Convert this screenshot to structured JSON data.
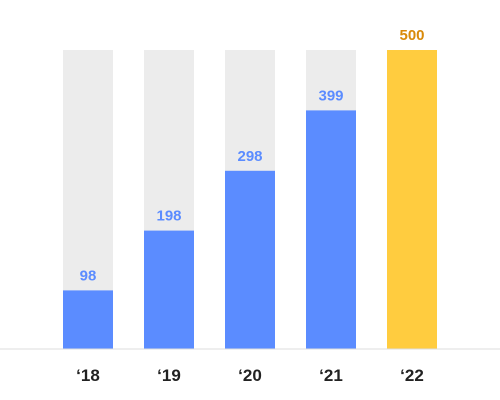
{
  "chart_data": {
    "type": "bar",
    "categories": [
      "‘18",
      "‘19",
      "‘20",
      "‘21",
      "‘22"
    ],
    "values": [
      98,
      198,
      298,
      399,
      500
    ],
    "data_labels": [
      "98",
      "198",
      "298",
      "399",
      "500"
    ],
    "ylim": [
      0,
      500
    ],
    "grid": false,
    "legend": "none",
    "title": "",
    "xlabel": "",
    "ylabel": ""
  },
  "colors": {
    "bar": "#5b8cff",
    "highlight_bar": "#ffcc3f",
    "bar_track": "#ececec",
    "value_label": "#5b8cff",
    "highlight_label": "#d98a0a",
    "baseline": "#dddddd"
  },
  "highlight_index": 4
}
